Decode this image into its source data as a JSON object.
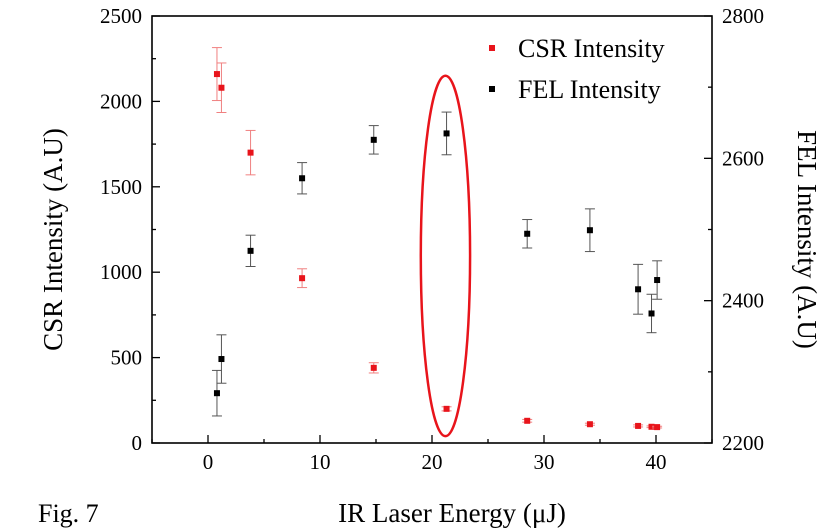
{
  "figure_label": "Fig. 7",
  "chart_data": {
    "type": "scatter",
    "xlabel": "IR Laser Energy (μJ)",
    "ylabel_left": "CSR Intensity (A.U)",
    "ylabel_right": "FEL Intensity (A.U)",
    "xlim": [
      -5,
      45
    ],
    "ylim_left": [
      0,
      2500
    ],
    "ylim_right": [
      2200,
      2800
    ],
    "x_ticks": [
      0,
      10,
      20,
      30,
      40
    ],
    "y_ticks_left": [
      0,
      500,
      1000,
      1500,
      2000,
      2500
    ],
    "y_ticks_right": [
      2200,
      2400,
      2600,
      2800
    ],
    "legend_position": "top-right",
    "series": [
      {
        "name": "CSR Intensity",
        "color": "#e8141b",
        "axis": "left",
        "points": [
          {
            "x": 0.8,
            "y": 2160,
            "err": 155
          },
          {
            "x": 1.2,
            "y": 2080,
            "err": 145
          },
          {
            "x": 3.8,
            "y": 1700,
            "err": 130
          },
          {
            "x": 8.4,
            "y": 965,
            "err": 55
          },
          {
            "x": 14.8,
            "y": 440,
            "err": 30
          },
          {
            "x": 21.3,
            "y": 200,
            "err": 12
          },
          {
            "x": 28.5,
            "y": 130,
            "err": 8
          },
          {
            "x": 34.1,
            "y": 110,
            "err": 6
          },
          {
            "x": 38.4,
            "y": 100,
            "err": 6
          },
          {
            "x": 39.6,
            "y": 95,
            "err": 5
          },
          {
            "x": 40.1,
            "y": 93,
            "err": 5
          }
        ]
      },
      {
        "name": "FEL Intensity",
        "color": "#000000",
        "axis": "right",
        "points": [
          {
            "x": 0.8,
            "y": 2270,
            "err": 32
          },
          {
            "x": 1.2,
            "y": 2318,
            "err": 34
          },
          {
            "x": 3.8,
            "y": 2470,
            "err": 22
          },
          {
            "x": 8.4,
            "y": 2572,
            "err": 22
          },
          {
            "x": 14.8,
            "y": 2626,
            "err": 20
          },
          {
            "x": 21.3,
            "y": 2635,
            "err": 30
          },
          {
            "x": 28.5,
            "y": 2494,
            "err": 20
          },
          {
            "x": 34.1,
            "y": 2499,
            "err": 30
          },
          {
            "x": 38.4,
            "y": 2416,
            "err": 35
          },
          {
            "x": 39.6,
            "y": 2382,
            "err": 27
          },
          {
            "x": 40.1,
            "y": 2429,
            "err": 27
          }
        ]
      }
    ],
    "annotation": {
      "shape": "ellipse",
      "color": "#e8141b",
      "x_range": [
        19.0,
        23.4
      ],
      "y_left_range": [
        40,
        2150
      ]
    }
  }
}
